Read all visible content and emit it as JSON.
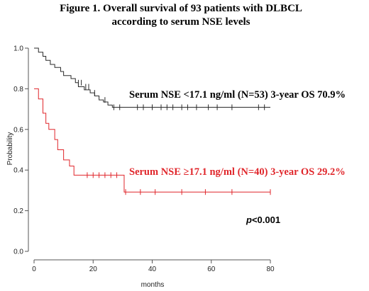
{
  "chart_data": {
    "type": "line",
    "title_line1": "Figure 1.  Overall survival of 93 patients with DLBCL",
    "title_line2": "according to serum NSE levels",
    "xlabel": "months",
    "ylabel": "Probability",
    "xlim": [
      0,
      80
    ],
    "ylim": [
      0,
      1.0
    ],
    "x_ticks": [
      0,
      20,
      40,
      60,
      80
    ],
    "y_ticks": [
      0.0,
      0.2,
      0.4,
      0.6,
      0.8,
      1.0
    ],
    "grid": false,
    "series": [
      {
        "name": "Serum NSE <17.1 ng/ml (N=53)",
        "annotation": "Serum NSE <17.1 ng/ml (N=53)  3-year OS  70.9%",
        "color": "#2b2b2b",
        "steps": [
          [
            0,
            1.0
          ],
          [
            1.5,
            0.98
          ],
          [
            3,
            0.96
          ],
          [
            4,
            0.94
          ],
          [
            5.5,
            0.92
          ],
          [
            7,
            0.905
          ],
          [
            9,
            0.885
          ],
          [
            10,
            0.865
          ],
          [
            12.5,
            0.85
          ],
          [
            14,
            0.83
          ],
          [
            15,
            0.81
          ],
          [
            17,
            0.795
          ],
          [
            19,
            0.78
          ],
          [
            20.5,
            0.765
          ],
          [
            22,
            0.745
          ],
          [
            23.5,
            0.735
          ],
          [
            25,
            0.72
          ],
          [
            26.5,
            0.709
          ]
        ],
        "end_x": 80,
        "censored": [
          [
            15,
            0.83
          ],
          [
            16,
            0.83
          ],
          [
            17.5,
            0.81
          ],
          [
            18.5,
            0.81
          ],
          [
            20.5,
            0.78
          ],
          [
            24,
            0.745
          ],
          [
            27,
            0.709
          ],
          [
            29,
            0.709
          ],
          [
            35,
            0.709
          ],
          [
            37,
            0.709
          ],
          [
            40,
            0.709
          ],
          [
            43,
            0.709
          ],
          [
            45,
            0.709
          ],
          [
            47,
            0.709
          ],
          [
            50,
            0.709
          ],
          [
            52,
            0.709
          ],
          [
            55,
            0.709
          ],
          [
            59,
            0.709
          ],
          [
            62,
            0.709
          ],
          [
            67,
            0.709
          ],
          [
            76,
            0.709
          ],
          [
            78,
            0.709
          ]
        ]
      },
      {
        "name": "Serum NSE ≥17.1 ng/ml (N=40)",
        "annotation": "Serum NSE ≥17.1 ng/ml (N=40)  3-year OS  29.2%",
        "color": "#e0262b",
        "steps": [
          [
            0,
            0.8
          ],
          [
            1.5,
            0.75
          ],
          [
            3,
            0.68
          ],
          [
            4,
            0.63
          ],
          [
            5,
            0.6
          ],
          [
            7,
            0.55
          ],
          [
            8,
            0.5
          ],
          [
            10,
            0.45
          ],
          [
            12,
            0.42
          ],
          [
            13.5,
            0.375
          ],
          [
            30.5,
            0.292
          ]
        ],
        "end_x": 80,
        "censored": [
          [
            18,
            0.375
          ],
          [
            20,
            0.375
          ],
          [
            22,
            0.375
          ],
          [
            24,
            0.375
          ],
          [
            26,
            0.375
          ],
          [
            28,
            0.375
          ],
          [
            31,
            0.292
          ],
          [
            36,
            0.292
          ],
          [
            41,
            0.292
          ],
          [
            50,
            0.292
          ],
          [
            58,
            0.292
          ],
          [
            67,
            0.292
          ],
          [
            80,
            0.292
          ]
        ]
      }
    ],
    "p_value_prefix": "p",
    "p_value_suffix": "<0.001"
  }
}
